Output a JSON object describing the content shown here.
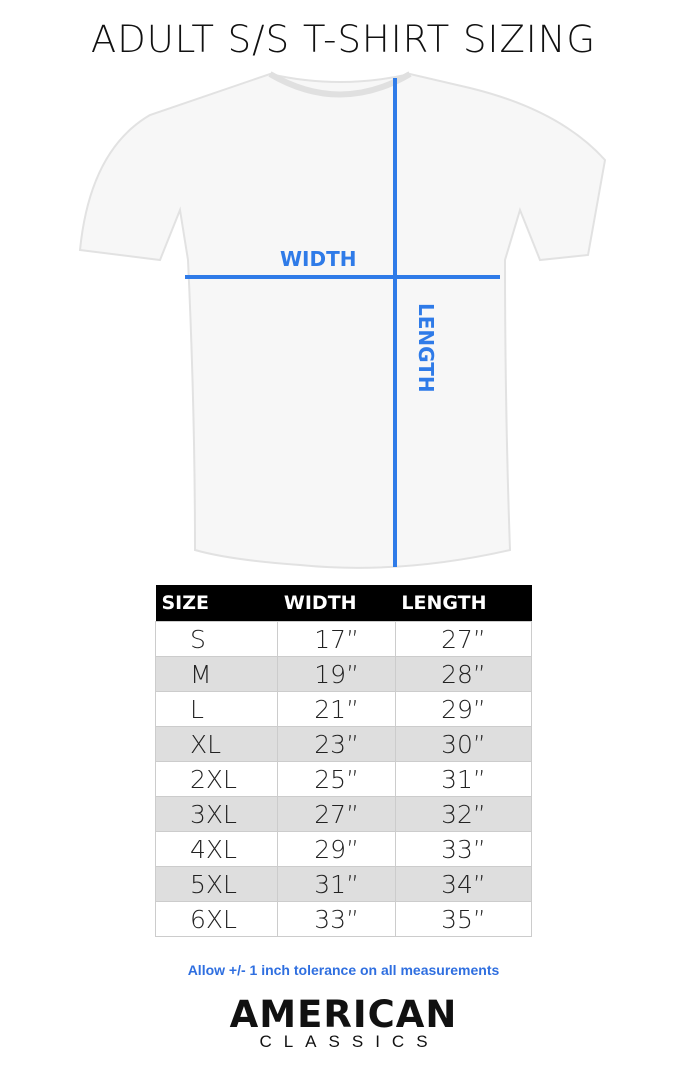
{
  "title": "ADULT S/S T-SHIRT SIZING",
  "diagram": {
    "width_label": "WIDTH",
    "length_label": "LENGTH",
    "line_color": "#2f7be8"
  },
  "table": {
    "headers": [
      "SIZE",
      "WIDTH",
      "LENGTH"
    ],
    "rows": [
      [
        "S",
        "17”",
        "27”"
      ],
      [
        "M",
        "19”",
        "28”"
      ],
      [
        "L",
        "21”",
        "29”"
      ],
      [
        "XL",
        "23”",
        "30”"
      ],
      [
        "2XL",
        "25”",
        "31”"
      ],
      [
        "3XL",
        "27”",
        "32”"
      ],
      [
        "4XL",
        "29”",
        "33”"
      ],
      [
        "5XL",
        "31”",
        "34”"
      ],
      [
        "6XL",
        "33”",
        "35”"
      ]
    ]
  },
  "note": "Allow +/- 1 inch tolerance on all measurements",
  "logo": {
    "line1": "AMERICAN",
    "line2": "CLASSICS"
  }
}
